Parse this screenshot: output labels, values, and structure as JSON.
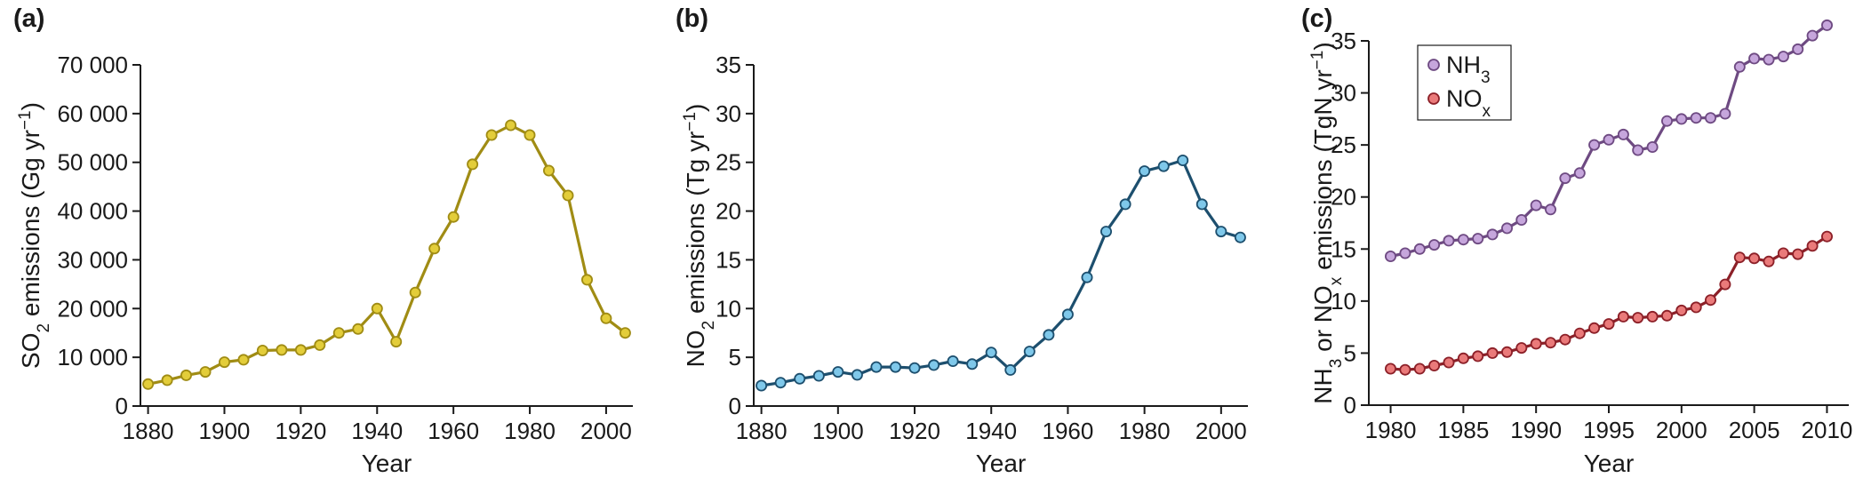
{
  "chart_data": [
    {
      "type": "line",
      "panel_label": "(a)",
      "title": "",
      "xlabel": "Year",
      "ylabel_parts": [
        "SO",
        "2",
        " emissions (Gg yr",
        "−1",
        ")"
      ],
      "xlim": [
        1878,
        2007
      ],
      "ylim": [
        0,
        70000
      ],
      "xticks": [
        1880,
        1900,
        1920,
        1940,
        1960,
        1980,
        2000
      ],
      "yticks": [
        0,
        10000,
        20000,
        30000,
        40000,
        50000,
        60000,
        70000
      ],
      "ytick_labels": [
        "0",
        "10 000",
        "20 000",
        "30 000",
        "40 000",
        "50 000",
        "60 000",
        "70 000"
      ],
      "grid": false,
      "series": [
        {
          "color": "#a08c14",
          "marker_fill": "#e3cd3a",
          "x": [
            1880,
            1885,
            1890,
            1895,
            1900,
            1905,
            1910,
            1915,
            1920,
            1925,
            1930,
            1935,
            1940,
            1945,
            1950,
            1955,
            1960,
            1965,
            1970,
            1975,
            1980,
            1985,
            1990,
            1995,
            2000,
            2005
          ],
          "y": [
            4500,
            5300,
            6300,
            7000,
            9000,
            9500,
            11400,
            11500,
            11500,
            12500,
            15000,
            15800,
            20000,
            13200,
            23300,
            32300,
            38800,
            49600,
            55600,
            57600,
            55600,
            48300,
            43200,
            25900,
            18000,
            15000
          ]
        }
      ]
    },
    {
      "type": "line",
      "panel_label": "(b)",
      "title": "",
      "xlabel": "Year",
      "ylabel_parts": [
        "NO",
        "2",
        " emissions (Tg yr",
        "−1",
        ")"
      ],
      "xlim": [
        1878,
        2007
      ],
      "ylim": [
        0,
        35
      ],
      "xticks": [
        1880,
        1900,
        1920,
        1940,
        1960,
        1980,
        2000
      ],
      "yticks": [
        0,
        5,
        10,
        15,
        20,
        25,
        30,
        35
      ],
      "ytick_labels": [
        "0",
        "5",
        "10",
        "15",
        "20",
        "25",
        "30",
        "35"
      ],
      "grid": false,
      "series": [
        {
          "color": "#1d4f6e",
          "marker_fill": "#7fc8ea",
          "x": [
            1880,
            1885,
            1890,
            1895,
            1900,
            1905,
            1910,
            1915,
            1920,
            1925,
            1930,
            1935,
            1940,
            1945,
            1950,
            1955,
            1960,
            1965,
            1970,
            1975,
            1980,
            1985,
            1990,
            1995,
            2000,
            2005
          ],
          "y": [
            2.1,
            2.4,
            2.8,
            3.1,
            3.5,
            3.2,
            4.0,
            4.0,
            3.9,
            4.2,
            4.6,
            4.3,
            5.5,
            3.7,
            5.6,
            7.3,
            9.4,
            13.2,
            17.9,
            20.7,
            24.1,
            24.6,
            25.2,
            20.7,
            17.9,
            17.3
          ]
        }
      ]
    },
    {
      "type": "line",
      "panel_label": "(c)",
      "title": "",
      "xlabel": "Year",
      "ylabel_parts": [
        "NH",
        "3",
        " or NO",
        "x",
        " emissions (TgN yr",
        "−1",
        ")"
      ],
      "xlim": [
        1978.5,
        2011.5
      ],
      "ylim": [
        0,
        35
      ],
      "xticks": [
        1980,
        1985,
        1990,
        1995,
        2000,
        2005,
        2010
      ],
      "yticks": [
        0,
        5,
        10,
        15,
        20,
        25,
        30,
        35
      ],
      "ytick_labels": [
        "0",
        "5",
        "10",
        "15",
        "20",
        "25",
        "30",
        "35"
      ],
      "grid": false,
      "legend_position": "top-left",
      "series": [
        {
          "name": "NH",
          "name_sub": "3",
          "color": "#6e4a82",
          "marker_fill": "#c6a6dc",
          "x": [
            1980,
            1981,
            1982,
            1983,
            1984,
            1985,
            1986,
            1987,
            1988,
            1989,
            1990,
            1991,
            1992,
            1993,
            1994,
            1995,
            1996,
            1997,
            1998,
            1999,
            2000,
            2001,
            2002,
            2003,
            2004,
            2005,
            2006,
            2007,
            2008,
            2009,
            2010
          ],
          "y": [
            14.3,
            14.6,
            15.0,
            15.4,
            15.8,
            15.9,
            16.0,
            16.4,
            17.0,
            17.8,
            19.2,
            18.8,
            21.8,
            22.3,
            25.0,
            25.5,
            26.0,
            24.5,
            24.8,
            27.3,
            27.5,
            27.6,
            27.6,
            28.0,
            32.5,
            33.3,
            33.2,
            33.5,
            34.2,
            35.5,
            36.5
          ]
        },
        {
          "name": "NO",
          "name_sub": "x",
          "color": "#8c2028",
          "marker_fill": "#ea7a7a",
          "x": [
            1980,
            1981,
            1982,
            1983,
            1984,
            1985,
            1986,
            1987,
            1988,
            1989,
            1990,
            1991,
            1992,
            1993,
            1994,
            1995,
            1996,
            1997,
            1998,
            1999,
            2000,
            2001,
            2002,
            2003,
            2004,
            2005,
            2006,
            2007,
            2008,
            2009,
            2010
          ],
          "y": [
            3.5,
            3.4,
            3.5,
            3.8,
            4.1,
            4.5,
            4.7,
            5.0,
            5.1,
            5.5,
            5.9,
            6.0,
            6.3,
            6.9,
            7.4,
            7.8,
            8.5,
            8.4,
            8.5,
            8.6,
            9.1,
            9.4,
            10.1,
            11.6,
            14.2,
            14.1,
            13.8,
            14.6,
            14.5,
            15.3,
            16.2
          ]
        }
      ]
    }
  ]
}
